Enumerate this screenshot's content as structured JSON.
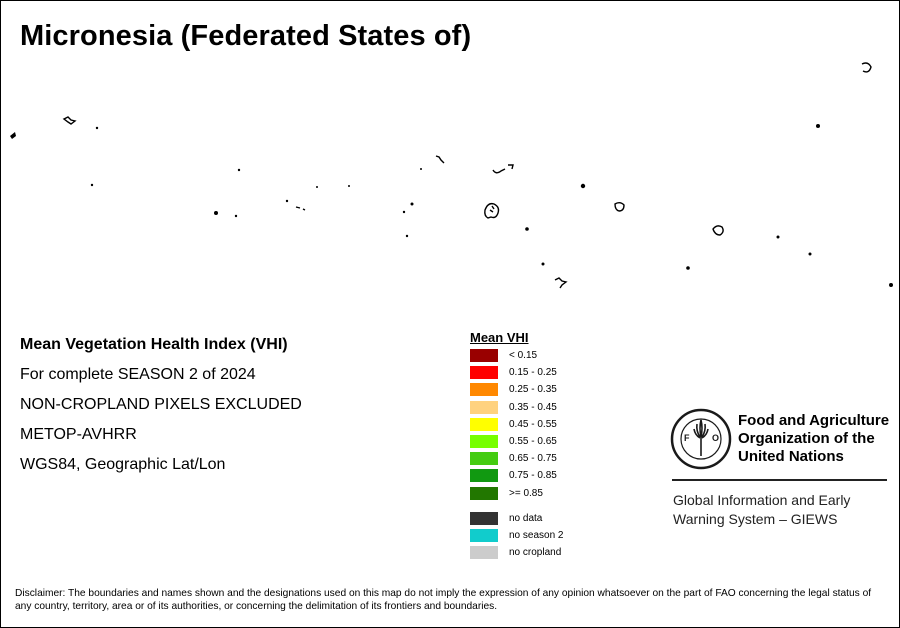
{
  "title": "Micronesia (Federated States of)",
  "info": [
    "Mean Vegetation Health Index (VHI)",
    "For complete SEASON 2 of 2024",
    "NON-CROPLAND PIXELS EXCLUDED",
    "METOP-AVHRR",
    "WGS84, Geographic Lat/Lon"
  ],
  "legend": {
    "title": "Mean VHI",
    "classes": [
      {
        "label": "< 0.15",
        "color": "#990000"
      },
      {
        "label": "0.15 - 0.25",
        "color": "#ff0000"
      },
      {
        "label": "0.25 - 0.35",
        "color": "#ff8800"
      },
      {
        "label": "0.35 - 0.45",
        "color": "#ffd27f"
      },
      {
        "label": "0.45 - 0.55",
        "color": "#ffff00"
      },
      {
        "label": "0.55 - 0.65",
        "color": "#77ff00"
      },
      {
        "label": "0.65 - 0.75",
        "color": "#44cc11"
      },
      {
        "label": "0.75 - 0.85",
        "color": "#119911"
      },
      {
        "label": ">= 0.85",
        "color": "#227700"
      }
    ],
    "other": [
      {
        "label": "no data",
        "color": "#333333"
      },
      {
        "label": "no season 2",
        "color": "#11cccc"
      },
      {
        "label": "no cropland",
        "color": "#cccccc"
      }
    ]
  },
  "logo": {
    "org_name": [
      "Food and Agriculture",
      "Organization of the",
      "United Nations"
    ],
    "emblem_text": "FAO",
    "emblem_motto": "FIAT PANIS",
    "system_name": [
      "Global Information and Early",
      "Warning System – GIEWS"
    ]
  },
  "disclaimer": "Disclaimer: The boundaries and names shown and the designations used on this map do not imply the expression of any opinion whatsoever on the part of FAO concerning the legal status of any country, territory, area or of its authorities, or concerning the delimitation of its frontiers and boundaries."
}
